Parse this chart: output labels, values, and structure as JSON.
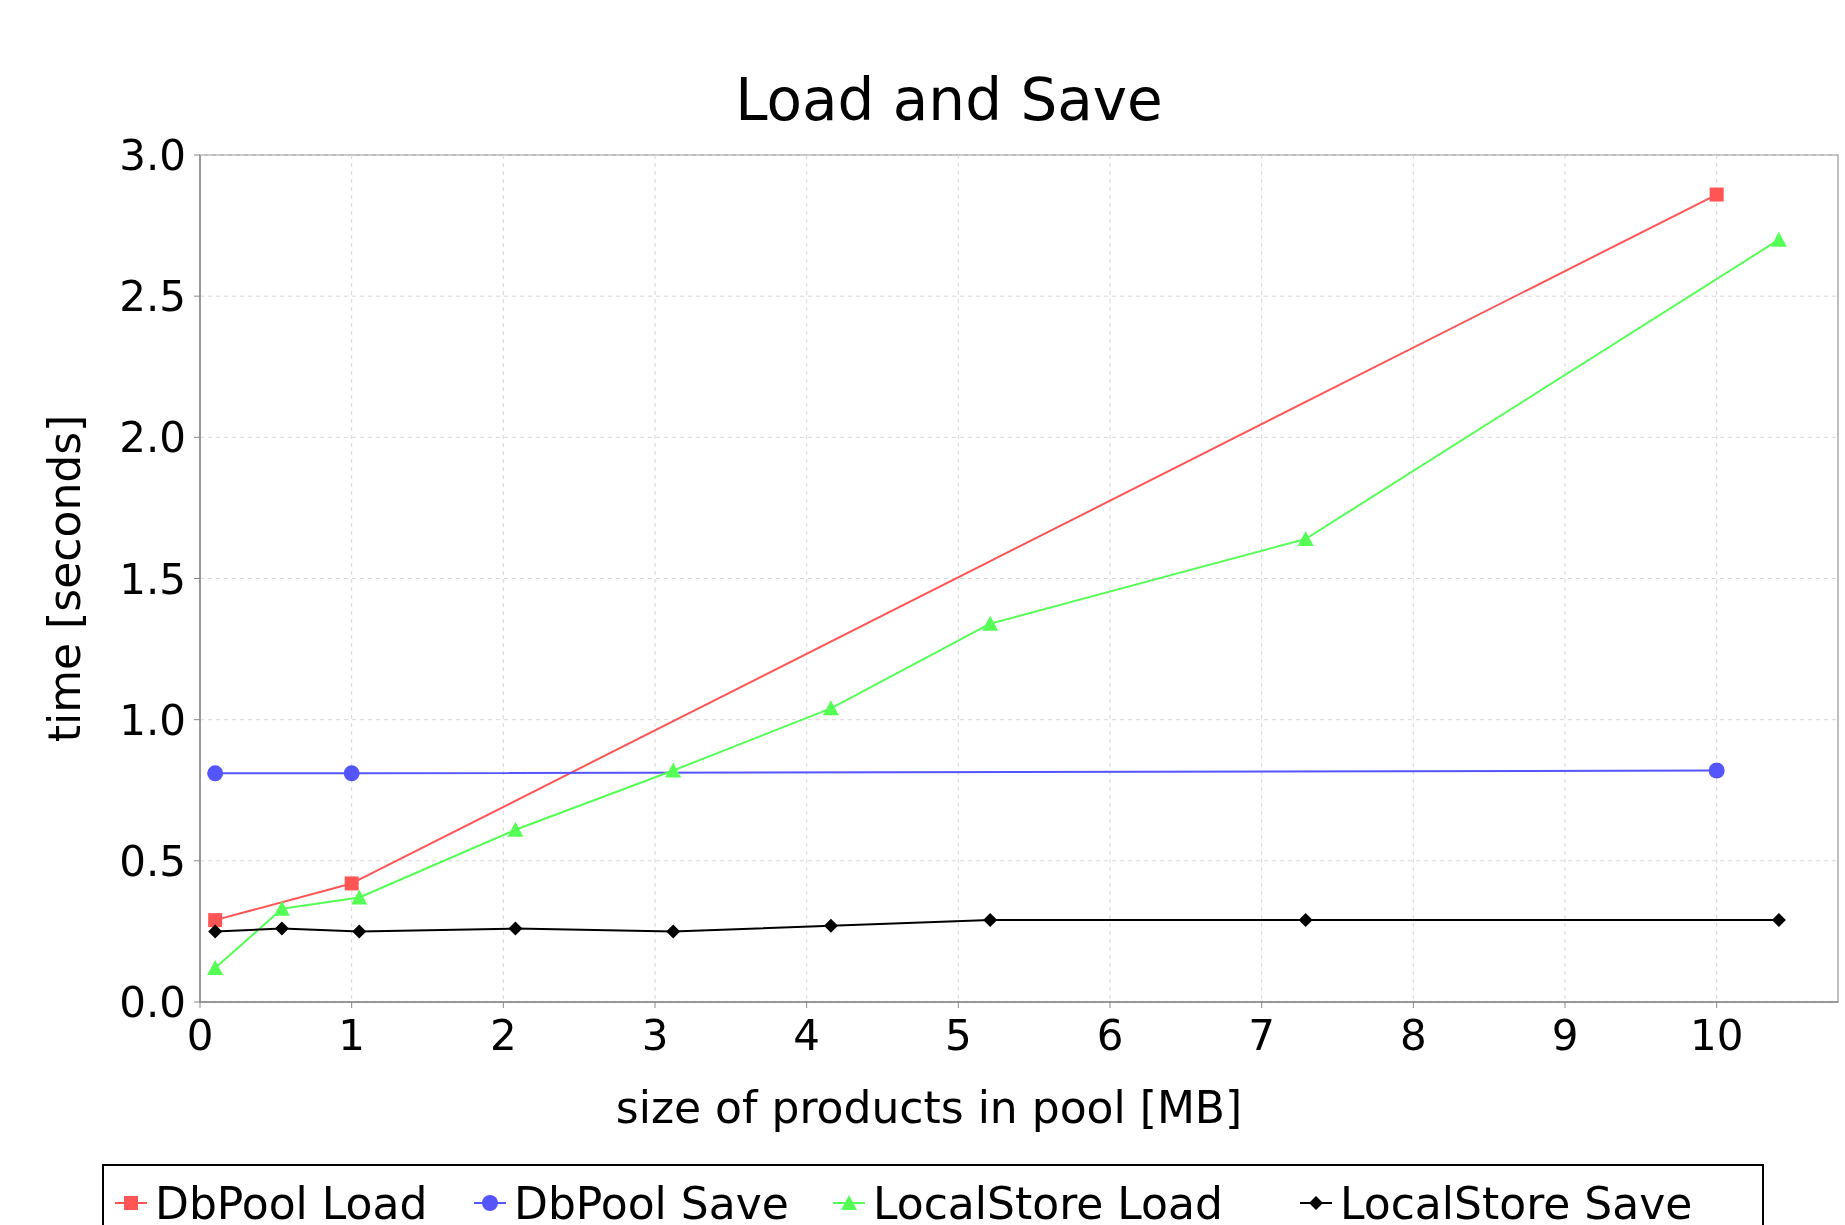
{
  "chart_data": {
    "type": "line",
    "title": "Load and Save",
    "xlabel": "size of products in pool [MB]",
    "ylabel": "time [seconds]",
    "xlim": [
      0,
      10.8
    ],
    "xticks": [
      0,
      1,
      2,
      3,
      4,
      5,
      6,
      7,
      8,
      9,
      10
    ],
    "ylim": [
      0,
      3
    ],
    "yticks": [
      {
        "value": 0,
        "label": "0.0"
      },
      {
        "value": 0.5,
        "label": "0.5"
      },
      {
        "value": 1,
        "label": "1.0"
      },
      {
        "value": 1.5,
        "label": "1.5"
      },
      {
        "value": 2,
        "label": "2.0"
      },
      {
        "value": 2.5,
        "label": "2.5"
      },
      {
        "value": 3,
        "label": "3.0"
      }
    ],
    "grid": true,
    "legend": "bottom",
    "line_style": "solid",
    "series": [
      {
        "name": "DbPool Load",
        "color": "#ff5555",
        "marker": "square",
        "x": [
          0.1,
          1.0,
          10.0
        ],
        "values": [
          0.29,
          0.42,
          2.86
        ]
      },
      {
        "name": "DbPool Save",
        "color": "#5555ff",
        "marker": "circle",
        "x": [
          0.1,
          1.0,
          10.0
        ],
        "values": [
          0.81,
          0.81,
          0.82
        ]
      },
      {
        "name": "LocalStore Load",
        "color": "#55ff55",
        "marker": "triangle",
        "x": [
          0.1,
          0.54,
          1.05,
          2.08,
          3.12,
          4.16,
          5.21,
          7.29,
          10.41
        ],
        "values": [
          0.12,
          0.33,
          0.37,
          0.61,
          0.82,
          1.04,
          1.34,
          1.64,
          2.7
        ]
      },
      {
        "name": "LocalStore Save",
        "color": "#000000",
        "marker": "diamond",
        "x": [
          0.1,
          0.54,
          1.05,
          2.08,
          3.12,
          4.16,
          5.21,
          7.29,
          10.41
        ],
        "values": [
          0.25,
          0.26,
          0.25,
          0.26,
          0.25,
          0.27,
          0.29,
          0.29,
          0.29
        ]
      }
    ]
  }
}
